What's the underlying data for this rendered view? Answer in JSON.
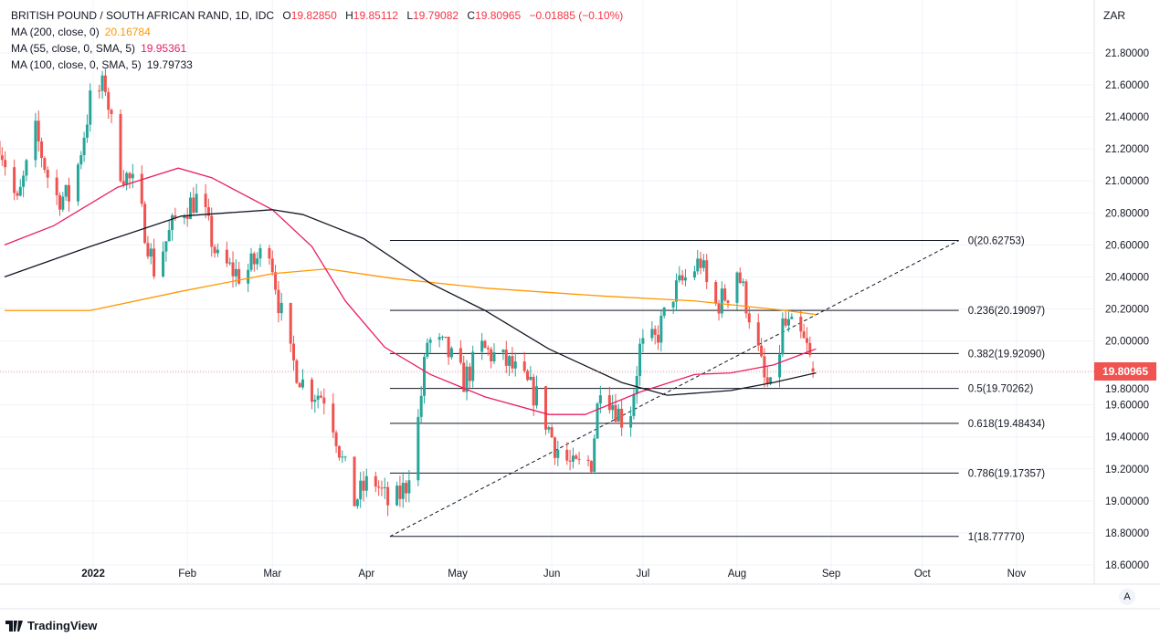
{
  "legend": {
    "symbol": "BRITISH POUND / SOUTH AFRICAN RAND, 1D, IDC",
    "open_label": "O",
    "open": "19.82850",
    "high_label": "H",
    "high": "19.85112",
    "low_label": "L",
    "low": "19.79082",
    "close_label": "C",
    "close": "19.80965",
    "change": "−0.01885 (−0.10%)",
    "ma200_label": "MA (200, close, 0)",
    "ma200_value": "20.16784",
    "ma55_label": "MA (55, close, 0, SMA, 5)",
    "ma55_value": "19.95361",
    "ma100_label": "MA (100, close, 0, SMA, 5)",
    "ma100_value": "19.79733"
  },
  "currency": "ZAR",
  "last_price": "19.80965",
  "auto_button": "A",
  "footer": {
    "brand": "TradingView"
  },
  "colors": {
    "up": "#26a69a",
    "down": "#ef5350",
    "ma200": "#ff9800",
    "ma55": "#e91e63",
    "ma100": "#131722"
  },
  "chart_data": {
    "type": "candlestick",
    "title": "BRITISH POUND / SOUTH AFRICAN RAND, 1D, IDC",
    "x_unit": "days since 2021-12-01",
    "ylim": [
      18.5,
      21.9
    ],
    "y_ticks": [
      "21.80000",
      "21.60000",
      "21.40000",
      "21.20000",
      "21.00000",
      "20.80000",
      "20.60000",
      "20.40000",
      "20.20000",
      "20.00000",
      "19.80000",
      "19.60000",
      "19.40000",
      "19.20000",
      "19.00000",
      "18.80000",
      "18.60000"
    ],
    "x_ticks": [
      {
        "label": "2022",
        "day": 31
      },
      {
        "label": "Feb",
        "day": 62
      },
      {
        "label": "Mar",
        "day": 90
      },
      {
        "label": "Apr",
        "day": 121
      },
      {
        "label": "May",
        "day": 151
      },
      {
        "label": "Jun",
        "day": 182
      },
      {
        "label": "Jul",
        "day": 212
      },
      {
        "label": "Aug",
        "day": 243
      },
      {
        "label": "Sep",
        "day": 274
      },
      {
        "label": "Oct",
        "day": 304
      },
      {
        "label": "Nov",
        "day": 335
      }
    ],
    "price_path": [
      [
        0,
        21.25
      ],
      [
        6,
        20.85
      ],
      [
        12,
        21.3
      ],
      [
        18,
        20.9
      ],
      [
        24,
        20.9
      ],
      [
        30,
        21.5
      ],
      [
        35,
        21.6
      ],
      [
        39,
        21.1
      ],
      [
        45,
        20.95
      ],
      [
        51,
        20.45
      ],
      [
        59,
        20.8
      ],
      [
        66,
        20.9
      ],
      [
        72,
        20.5
      ],
      [
        80,
        20.4
      ],
      [
        89,
        20.6
      ],
      [
        92,
        20.25
      ],
      [
        96,
        19.9
      ],
      [
        101,
        19.7
      ],
      [
        108,
        19.65
      ],
      [
        113,
        19.25
      ],
      [
        117,
        19.0
      ],
      [
        123,
        19.15
      ],
      [
        129,
        18.95
      ],
      [
        134,
        19.1
      ],
      [
        138,
        19.5
      ],
      [
        141,
        20.0
      ],
      [
        147,
        19.95
      ],
      [
        153,
        19.75
      ],
      [
        159,
        19.95
      ],
      [
        168,
        19.85
      ],
      [
        177,
        19.65
      ],
      [
        183,
        19.35
      ],
      [
        189,
        19.2
      ],
      [
        195,
        19.25
      ],
      [
        198,
        19.75
      ],
      [
        204,
        19.55
      ],
      [
        207,
        19.45
      ],
      [
        211,
        19.95
      ],
      [
        216,
        20.0
      ],
      [
        222,
        20.3
      ],
      [
        231,
        20.5
      ],
      [
        235,
        20.2
      ],
      [
        240,
        20.3
      ],
      [
        243,
        20.45
      ],
      [
        248,
        20.1
      ],
      [
        252,
        19.75
      ],
      [
        255,
        19.65
      ],
      [
        258,
        20.1
      ],
      [
        263,
        20.05
      ],
      [
        266,
        19.95
      ],
      [
        268,
        19.81
      ]
    ],
    "ma200": [
      [
        1.8,
        20.19
      ],
      [
        30,
        20.19
      ],
      [
        60,
        20.31
      ],
      [
        90,
        20.42
      ],
      [
        108,
        20.45
      ],
      [
        130,
        20.39
      ],
      [
        160,
        20.33
      ],
      [
        199,
        20.28
      ],
      [
        229,
        20.25
      ],
      [
        259,
        20.19
      ],
      [
        269,
        20.165
      ]
    ],
    "ma55": [
      [
        1.8,
        20.6
      ],
      [
        18,
        20.72
      ],
      [
        39,
        20.96
      ],
      [
        59,
        21.08
      ],
      [
        70,
        21.02
      ],
      [
        90,
        20.82
      ],
      [
        103,
        20.59
      ],
      [
        114,
        20.25
      ],
      [
        127,
        19.96
      ],
      [
        142,
        19.79
      ],
      [
        160,
        19.65
      ],
      [
        181,
        19.54
      ],
      [
        193,
        19.54
      ],
      [
        211,
        19.68
      ],
      [
        229,
        19.79
      ],
      [
        241,
        19.8
      ],
      [
        255,
        19.85
      ],
      [
        269,
        19.95
      ]
    ],
    "ma100": [
      [
        1.8,
        20.4
      ],
      [
        30,
        20.59
      ],
      [
        60,
        20.78
      ],
      [
        90,
        20.82
      ],
      [
        100,
        20.79
      ],
      [
        120,
        20.64
      ],
      [
        142,
        20.36
      ],
      [
        160,
        20.19
      ],
      [
        181,
        19.95
      ],
      [
        205,
        19.74
      ],
      [
        220,
        19.66
      ],
      [
        241,
        19.69
      ],
      [
        255,
        19.74
      ],
      [
        269,
        19.8
      ]
    ],
    "fibonacci": {
      "start": {
        "day": 128.7,
        "price": 18.7777
      },
      "end": {
        "day": 316,
        "price": 20.62753
      },
      "levels": [
        {
          "ratio": "0",
          "price": 20.62753,
          "label": "0(20.62753)"
        },
        {
          "ratio": "0.236",
          "price": 20.19097,
          "label": "0.236(20.19097)"
        },
        {
          "ratio": "0.382",
          "price": 19.9209,
          "label": "0.382(19.92090)"
        },
        {
          "ratio": "0.5",
          "price": 19.70262,
          "label": "0.5(19.70262)"
        },
        {
          "ratio": "0.618",
          "price": 19.48434,
          "label": "0.618(19.48434)"
        },
        {
          "ratio": "0.786",
          "price": 19.17357,
          "label": "0.786(19.17357)"
        },
        {
          "ratio": "1",
          "price": 18.7777,
          "label": "1(18.77770)"
        }
      ]
    }
  }
}
